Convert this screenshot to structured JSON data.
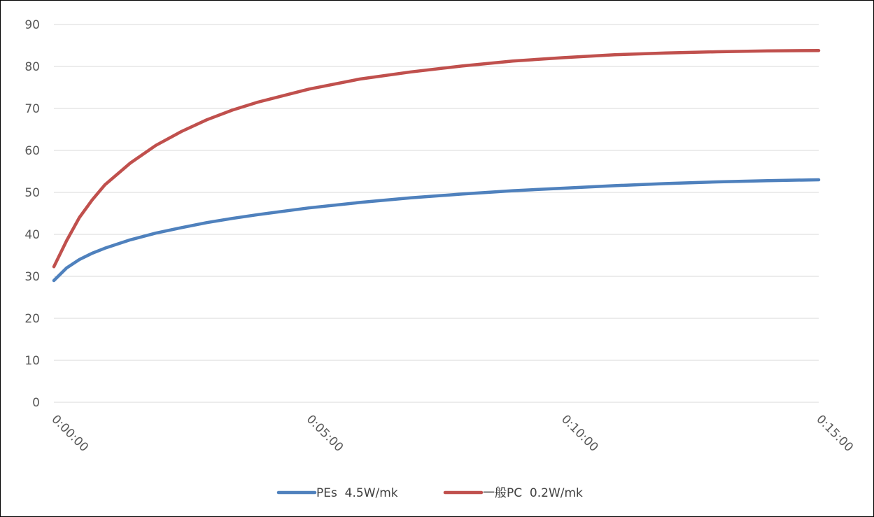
{
  "chart_data": {
    "type": "line",
    "title": "",
    "xlabel": "",
    "ylabel": "",
    "ylim": [
      0,
      90
    ],
    "y_ticks": [
      "0",
      "10",
      "20",
      "30",
      "40",
      "50",
      "60",
      "70",
      "80",
      "90"
    ],
    "x_ticks": [
      "0:00:00",
      "0:05:00",
      "0:10:00",
      "0:15:00"
    ],
    "x_range_seconds": [
      0,
      900
    ],
    "grid": true,
    "legend_position": "bottom",
    "x": [
      "0:00:00",
      "0:00:15",
      "0:00:30",
      "0:00:45",
      "0:01:00",
      "0:01:30",
      "0:02:00",
      "0:02:30",
      "0:03:00",
      "0:03:30",
      "0:04:00",
      "0:05:00",
      "0:06:00",
      "0:07:00",
      "0:08:00",
      "0:09:00",
      "0:10:00",
      "0:11:00",
      "0:12:00",
      "0:13:00",
      "0:14:00",
      "0:15:00"
    ],
    "series": [
      {
        "name": "PEs  4.5W/mk",
        "color": "#4f81bd",
        "values": [
          29.0,
          32.0,
          34.0,
          35.5,
          36.7,
          38.7,
          40.3,
          41.6,
          42.8,
          43.8,
          44.7,
          46.3,
          47.6,
          48.7,
          49.6,
          50.4,
          51.0,
          51.6,
          52.1,
          52.5,
          52.8,
          53.0
        ]
      },
      {
        "name": "一般PC  0.2W/mk",
        "color": "#c0504d",
        "values": [
          32.3,
          38.5,
          44.0,
          48.2,
          51.8,
          57.0,
          61.2,
          64.5,
          67.3,
          69.6,
          71.5,
          74.6,
          77.0,
          78.7,
          80.1,
          81.3,
          82.1,
          82.8,
          83.2,
          83.5,
          83.7,
          83.8
        ]
      }
    ]
  }
}
